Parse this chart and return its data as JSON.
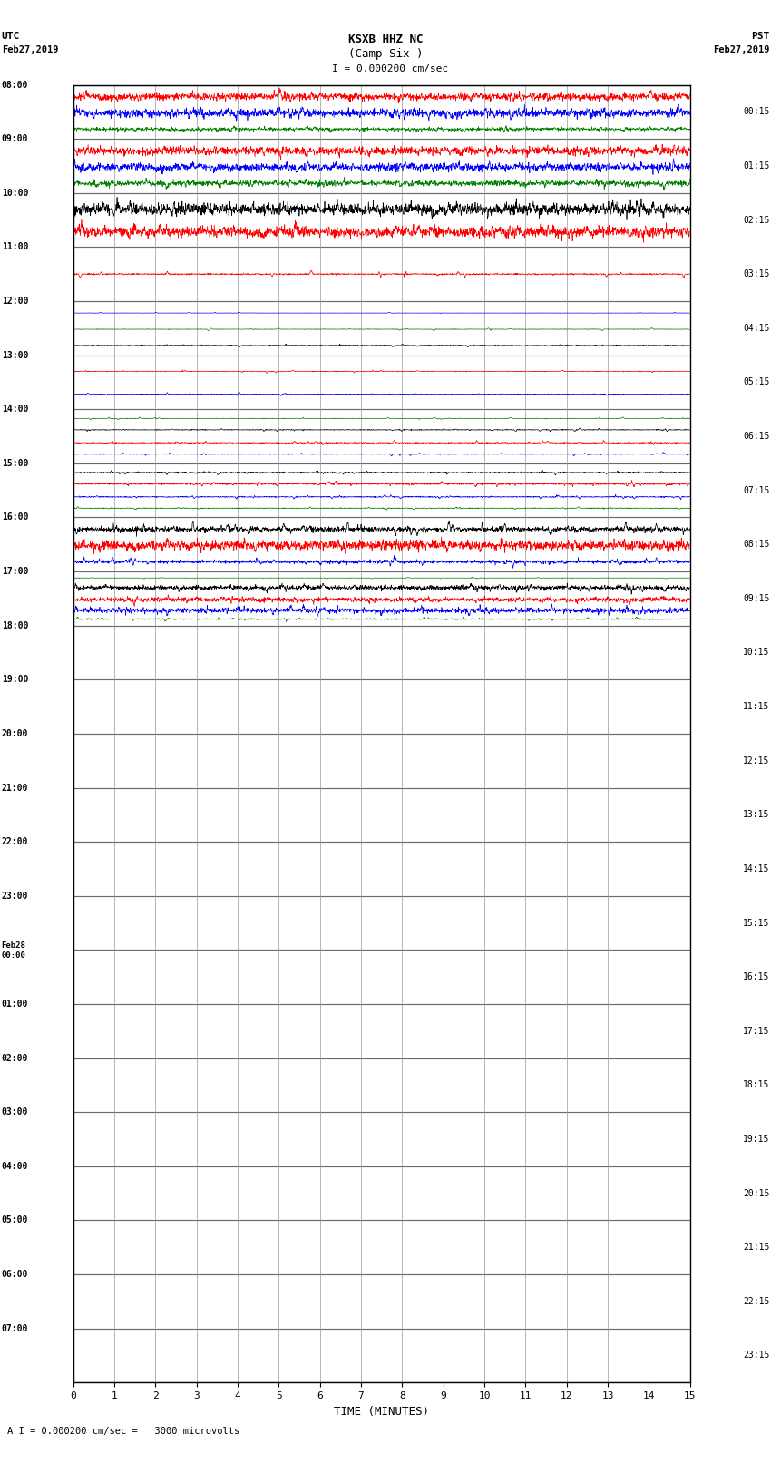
{
  "title_line1": "KSXB HHZ NC",
  "title_line2": "(Camp Six )",
  "scale_label": "I = 0.000200 cm/sec",
  "xlabel": "TIME (MINUTES)",
  "footer": "A I = 0.000200 cm/sec =   3000 microvolts",
  "utc_times": [
    "08:00",
    "09:00",
    "10:00",
    "11:00",
    "12:00",
    "13:00",
    "14:00",
    "15:00",
    "16:00",
    "17:00",
    "18:00",
    "19:00",
    "20:00",
    "21:00",
    "22:00",
    "23:00",
    "Feb28\n00:00",
    "01:00",
    "02:00",
    "03:00",
    "04:00",
    "05:00",
    "06:00",
    "07:00"
  ],
  "pst_times": [
    "00:15",
    "01:15",
    "02:15",
    "03:15",
    "04:15",
    "05:15",
    "06:15",
    "07:15",
    "08:15",
    "09:15",
    "10:15",
    "11:15",
    "12:15",
    "13:15",
    "14:15",
    "15:15",
    "16:15",
    "17:15",
    "18:15",
    "19:15",
    "20:15",
    "21:15",
    "22:15",
    "23:15"
  ],
  "n_rows": 24,
  "trace_colors": [
    "red",
    "blue",
    "green",
    "black"
  ],
  "background_color": "white",
  "grid_color": "#999999",
  "fig_width": 8.5,
  "fig_height": 16.13,
  "rows": [
    {
      "traces": [
        {
          "color": "red",
          "amp": 0.38,
          "noise_scale": 0.55,
          "spike_rate": 0.06
        },
        {
          "color": "blue",
          "amp": 0.22,
          "noise_scale": 0.45,
          "spike_rate": 0.05
        },
        {
          "color": "green",
          "amp": 0.12,
          "noise_scale": 0.35,
          "spike_rate": 0.04
        }
      ]
    },
    {
      "traces": [
        {
          "color": "red",
          "amp": 0.38,
          "noise_scale": 0.55,
          "spike_rate": 0.06
        },
        {
          "color": "blue",
          "amp": 0.3,
          "noise_scale": 0.5,
          "spike_rate": 0.05
        },
        {
          "color": "green",
          "amp": 0.22,
          "noise_scale": 0.4,
          "spike_rate": 0.04
        }
      ]
    },
    {
      "traces": [
        {
          "color": "black",
          "amp": 0.4,
          "noise_scale": 0.55,
          "spike_rate": 0.06
        },
        {
          "color": "red",
          "amp": 0.38,
          "noise_scale": 0.55,
          "spike_rate": 0.06
        }
      ]
    },
    {
      "traces": [
        {
          "color": "red",
          "amp": 0.06,
          "noise_scale": 0.1,
          "spike_rate": 0.008
        }
      ]
    },
    {
      "traces": [
        {
          "color": "blue",
          "amp": 0.04,
          "noise_scale": 0.05,
          "spike_rate": 0.005
        },
        {
          "color": "green",
          "amp": 0.06,
          "noise_scale": 0.08,
          "spike_rate": 0.008
        },
        {
          "color": "black",
          "amp": 0.08,
          "noise_scale": 0.12,
          "spike_rate": 0.01
        }
      ]
    },
    {
      "traces": [
        {
          "color": "red",
          "amp": 0.05,
          "noise_scale": 0.08,
          "spike_rate": 0.008
        },
        {
          "color": "blue",
          "amp": 0.06,
          "noise_scale": 0.08,
          "spike_rate": 0.008
        }
      ]
    },
    {
      "traces": [
        {
          "color": "green",
          "amp": 0.06,
          "noise_scale": 0.08,
          "spike_rate": 0.01
        },
        {
          "color": "black",
          "amp": 0.08,
          "noise_scale": 0.1,
          "spike_rate": 0.012
        },
        {
          "color": "red",
          "amp": 0.1,
          "noise_scale": 0.12,
          "spike_rate": 0.015
        },
        {
          "color": "blue",
          "amp": 0.08,
          "noise_scale": 0.1,
          "spike_rate": 0.012
        }
      ]
    },
    {
      "traces": [
        {
          "color": "black",
          "amp": 0.1,
          "noise_scale": 0.12,
          "spike_rate": 0.015
        },
        {
          "color": "red",
          "amp": 0.12,
          "noise_scale": 0.15,
          "spike_rate": 0.018
        },
        {
          "color": "blue",
          "amp": 0.1,
          "noise_scale": 0.12,
          "spike_rate": 0.015
        },
        {
          "color": "green",
          "amp": 0.08,
          "noise_scale": 0.1,
          "spike_rate": 0.012
        }
      ]
    },
    {
      "traces": [
        {
          "color": "black",
          "amp": 0.15,
          "noise_scale": 0.18,
          "spike_rate": 0.02
        },
        {
          "color": "red",
          "amp": 0.38,
          "noise_scale": 0.55,
          "spike_rate": 0.05
        },
        {
          "color": "blue",
          "amp": 0.18,
          "noise_scale": 0.2,
          "spike_rate": 0.02
        }
      ]
    },
    {
      "traces": [
        {
          "color": "green",
          "amp": 0.06,
          "noise_scale": 0.08,
          "spike_rate": 0.008
        },
        {
          "color": "black",
          "amp": 0.25,
          "noise_scale": 0.3,
          "spike_rate": 0.025
        },
        {
          "color": "red",
          "amp": 0.38,
          "noise_scale": 0.55,
          "spike_rate": 0.05
        },
        {
          "color": "blue",
          "amp": 0.22,
          "noise_scale": 0.25,
          "spike_rate": 0.022
        },
        {
          "color": "green",
          "amp": 0.12,
          "noise_scale": 0.15,
          "spike_rate": 0.015
        }
      ]
    },
    {
      "traces": []
    },
    {
      "traces": []
    },
    {
      "traces": []
    },
    {
      "traces": []
    },
    {
      "traces": []
    },
    {
      "traces": []
    },
    {
      "traces": []
    },
    {
      "traces": []
    },
    {
      "traces": []
    },
    {
      "traces": []
    },
    {
      "traces": []
    },
    {
      "traces": []
    },
    {
      "traces": []
    },
    {
      "traces": []
    }
  ]
}
